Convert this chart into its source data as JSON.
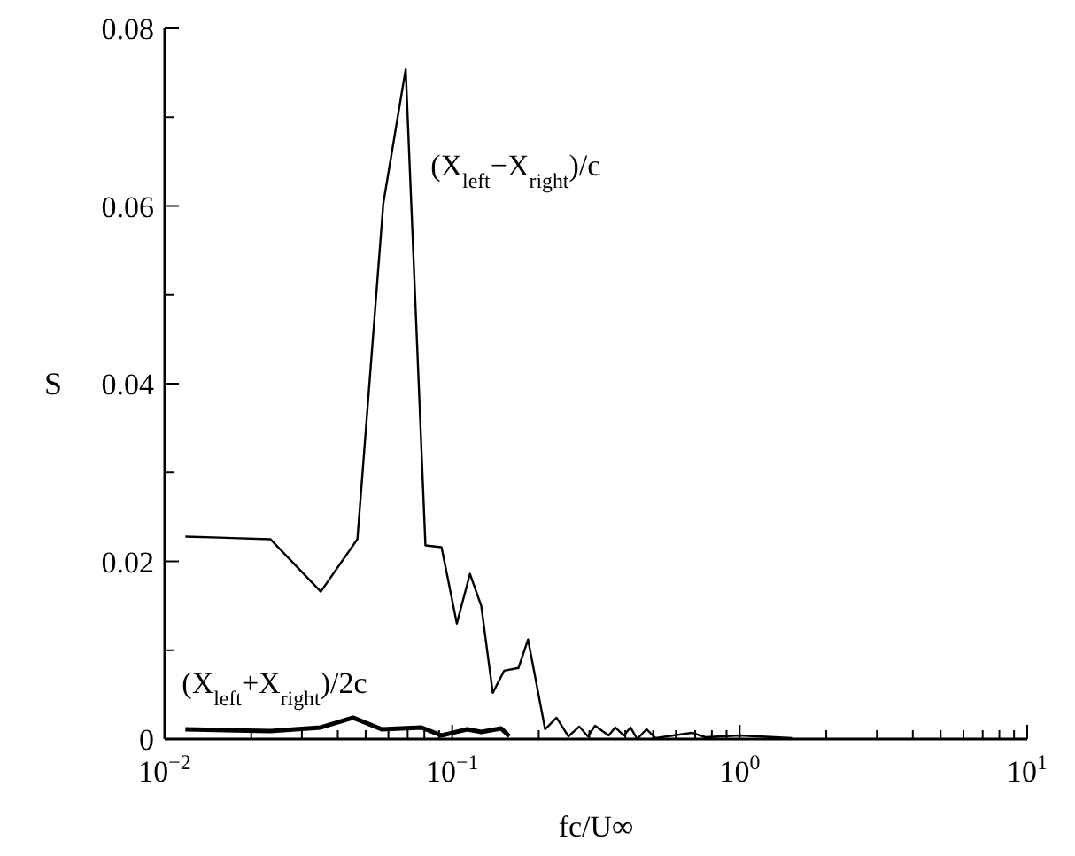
{
  "chart_data": {
    "type": "line",
    "xlabel": "fc/U∞",
    "ylabel": "S",
    "log": "x",
    "xlim": [
      0.01,
      10
    ],
    "ylim": [
      0,
      0.08
    ],
    "xticks": [
      {
        "value": 0.01,
        "label": "10$^{−2}$"
      },
      {
        "value": 0.02,
        "label": null
      },
      {
        "value": 0.03,
        "label": null
      },
      {
        "value": 0.04,
        "label": null
      },
      {
        "value": 0.05,
        "label": null
      },
      {
        "value": 0.06,
        "label": null
      },
      {
        "value": 0.07,
        "label": null
      },
      {
        "value": 0.08,
        "label": null
      },
      {
        "value": 0.09,
        "label": null
      },
      {
        "value": 0.1,
        "label": "10$^{−1}$"
      },
      {
        "value": 0.2,
        "label": null
      },
      {
        "value": 0.3,
        "label": null
      },
      {
        "value": 0.4,
        "label": null
      },
      {
        "value": 0.5,
        "label": null
      },
      {
        "value": 0.6,
        "label": null
      },
      {
        "value": 0.7,
        "label": null
      },
      {
        "value": 0.8,
        "label": null
      },
      {
        "value": 0.9,
        "label": null
      },
      {
        "value": 1,
        "label": "10$^{0}$"
      },
      {
        "value": 2,
        "label": null
      },
      {
        "value": 3,
        "label": null
      },
      {
        "value": 4,
        "label": null
      },
      {
        "value": 5,
        "label": null
      },
      {
        "value": 6,
        "label": null
      },
      {
        "value": 7,
        "label": null
      },
      {
        "value": 8,
        "label": null
      },
      {
        "value": 9,
        "label": null
      },
      {
        "value": 10,
        "label": "10$^{1}$"
      }
    ],
    "yticks": [
      0,
      {
        "value": 0.01,
        "label": null
      },
      0.02,
      {
        "value": 0.03,
        "label": null
      },
      0.04,
      {
        "value": 0.05,
        "label": null
      },
      0.06,
      {
        "value": 0.07,
        "label": null
      },
      0.08
    ],
    "grid": false,
    "legend": false,
    "marker": "none",
    "line_style": "solid",
    "series": [
      {
        "name": "(X$_{left}$−X$_{right}$)/c",
        "color": "#000000",
        "x": [
          0.0118,
          0.0233,
          0.0349,
          0.0468,
          0.0576,
          0.0689,
          0.0807,
          0.0918,
          0.1038,
          0.1153,
          0.1262,
          0.1384,
          0.1517,
          0.17,
          0.1836,
          0.2105,
          0.2306,
          0.2537,
          0.2768,
          0.2965,
          0.314,
          0.35,
          0.369,
          0.395,
          0.417,
          0.44,
          0.474,
          0.51,
          0.682,
          0.76,
          1.0,
          1.52
        ],
        "values": [
          0.0228,
          0.0225,
          0.0166,
          0.0225,
          0.0603,
          0.0754,
          0.0218,
          0.0216,
          0.013,
          0.0186,
          0.015,
          0.0052,
          0.0077,
          0.008,
          0.0112,
          0.0011,
          0.0024,
          0.0003,
          0.0014,
          0.0003,
          0.0015,
          0.0004,
          0.0013,
          0.0004,
          0.0013,
          0.0,
          0.0011,
          0.0001,
          0.0007,
          0.0002,
          0.0004,
          0.0001
        ]
      },
      {
        "name": "(X$_{left}$+X$_{right}$)/2c",
        "color": "#000000",
        "x": [
          0.0118,
          0.0233,
          0.0349,
          0.0452,
          0.0569,
          0.0782,
          0.0918,
          0.1127,
          0.1262,
          0.148,
          0.158
        ],
        "values": [
          0.0011,
          0.0009,
          0.0013,
          0.0024,
          0.0011,
          0.0013,
          0.0004,
          0.0011,
          0.0008,
          0.0012,
          0.0003
        ]
      }
    ]
  }
}
